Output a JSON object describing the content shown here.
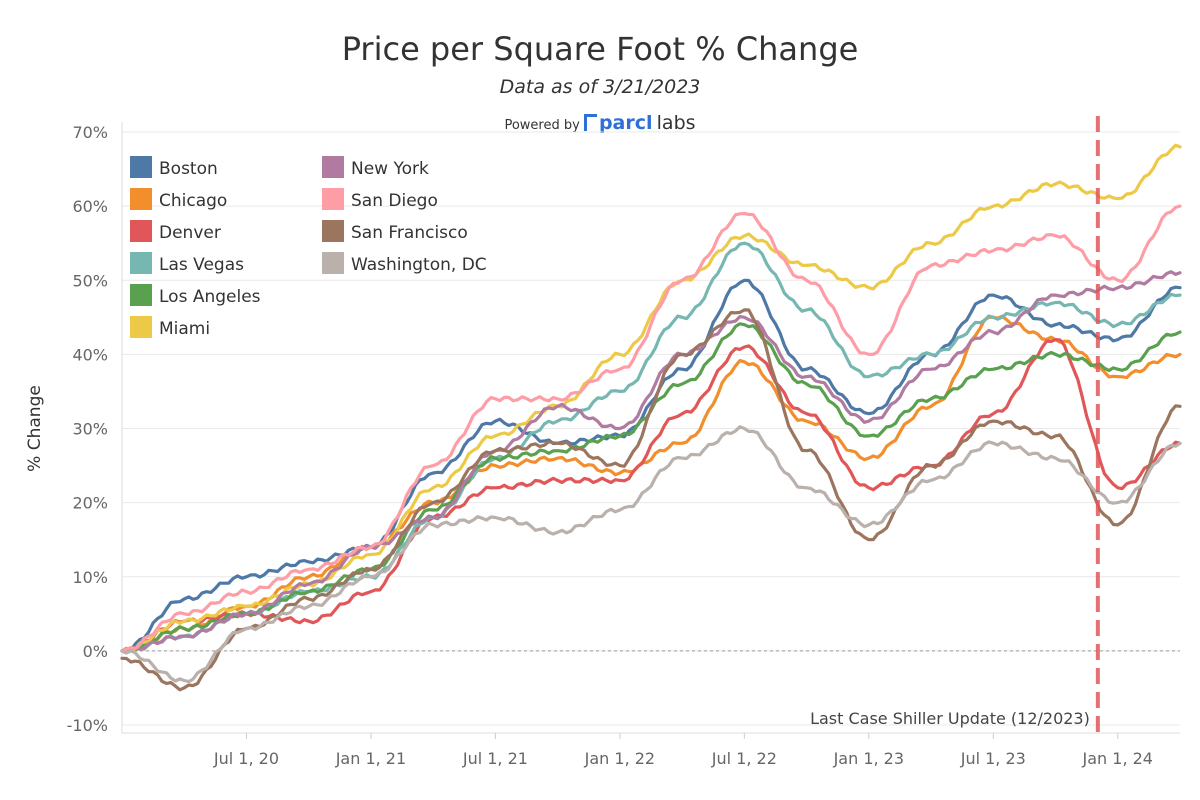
{
  "chart_data": {
    "type": "line",
    "title": "Price per Square Foot % Change",
    "subtitle": "Data as of 3/21/2023",
    "powered_by": "Powered by",
    "brand": "parcl",
    "brand_suffix": "labs",
    "xlabel": "",
    "ylabel": "% Change",
    "ylim": [
      -10,
      70
    ],
    "yticks": [
      -10,
      0,
      10,
      20,
      30,
      40,
      50,
      60,
      70
    ],
    "ytick_labels": [
      "-10%",
      "0%",
      "10%",
      "20%",
      "30%",
      "40%",
      "50%",
      "60%",
      "70%"
    ],
    "xticks": [
      {
        "t": 2020.5,
        "label": "Jul 1, 20"
      },
      {
        "t": 2021.0,
        "label": "Jan 1, 21"
      },
      {
        "t": 2021.5,
        "label": "Jul 1, 21"
      },
      {
        "t": 2022.0,
        "label": "Jan 1, 22"
      },
      {
        "t": 2022.5,
        "label": "Jul 1, 22"
      },
      {
        "t": 2023.0,
        "label": "Jan 1, 23"
      },
      {
        "t": 2023.5,
        "label": "Jul 1, 23"
      },
      {
        "t": 2024.0,
        "label": "Jan 1, 24"
      }
    ],
    "xlim": [
      2020.0,
      2024.25
    ],
    "x": [
      2020.0,
      2020.25,
      2020.5,
      2020.75,
      2021.0,
      2021.25,
      2021.5,
      2021.75,
      2022.0,
      2022.25,
      2022.5,
      2022.75,
      2023.0,
      2023.25,
      2023.5,
      2023.75,
      2024.0,
      2024.25
    ],
    "reference_line": {
      "t": 2023.92,
      "label": "Last Case Shiller Update (12/2023)",
      "color": "#e15759"
    },
    "zero_line": true,
    "legend_position": "top-left",
    "series": [
      {
        "name": "Boston",
        "color": "#4e79a7",
        "values": [
          0,
          7,
          10,
          12,
          14,
          24,
          31,
          28,
          29,
          38,
          50,
          38,
          32,
          40,
          48,
          44,
          42,
          49
        ]
      },
      {
        "name": "Chicago",
        "color": "#f28e2b",
        "values": [
          0,
          3,
          6,
          10,
          14,
          20,
          25,
          26,
          24,
          28,
          39,
          31,
          26,
          33,
          45,
          42,
          37,
          40
        ]
      },
      {
        "name": "Denver",
        "color": "#e15759",
        "values": [
          0,
          4,
          5,
          4,
          8,
          18,
          22,
          23,
          23,
          32,
          41,
          32,
          22,
          25,
          32,
          42,
          22,
          28
        ]
      },
      {
        "name": "Las Vegas",
        "color": "#76b7b2",
        "values": [
          0,
          2,
          5,
          8,
          10,
          18,
          26,
          31,
          35,
          45,
          55,
          46,
          37,
          40,
          45,
          47,
          44,
          48
        ]
      },
      {
        "name": "Los Angeles",
        "color": "#59a14f",
        "values": [
          0,
          3,
          5,
          8,
          11,
          19,
          26,
          27,
          29,
          36,
          44,
          36,
          29,
          34,
          38,
          40,
          38,
          43
        ]
      },
      {
        "name": "Miami",
        "color": "#edc948",
        "values": [
          0,
          4,
          6,
          9,
          13,
          22,
          29,
          33,
          40,
          50,
          56,
          52,
          49,
          55,
          60,
          63,
          61,
          68
        ]
      },
      {
        "name": "New York",
        "color": "#b07aa1",
        "values": [
          0,
          2,
          5,
          9,
          14,
          18,
          27,
          33,
          30,
          40,
          45,
          37,
          31,
          38,
          43,
          48,
          49,
          51
        ]
      },
      {
        "name": "San Diego",
        "color": "#ff9da7",
        "values": [
          0,
          5,
          8,
          11,
          14,
          25,
          34,
          34,
          38,
          50,
          59,
          50,
          40,
          52,
          54,
          56,
          50,
          60
        ]
      },
      {
        "name": "San Francisco",
        "color": "#9c755f",
        "values": [
          -1,
          -5,
          3,
          7,
          11,
          20,
          27,
          28,
          25,
          40,
          46,
          27,
          15,
          25,
          31,
          29,
          17,
          33
        ]
      },
      {
        "name": "Washington, DC",
        "color": "#bab0ac",
        "values": [
          0,
          -4,
          3,
          6,
          10,
          17,
          18,
          16,
          19,
          26,
          30,
          22,
          17,
          23,
          28,
          26,
          20,
          28
        ]
      }
    ]
  },
  "colors": {
    "grid": "#e9e9e9",
    "axis_text": "#666666",
    "zero_line": "#9a9a9a"
  }
}
